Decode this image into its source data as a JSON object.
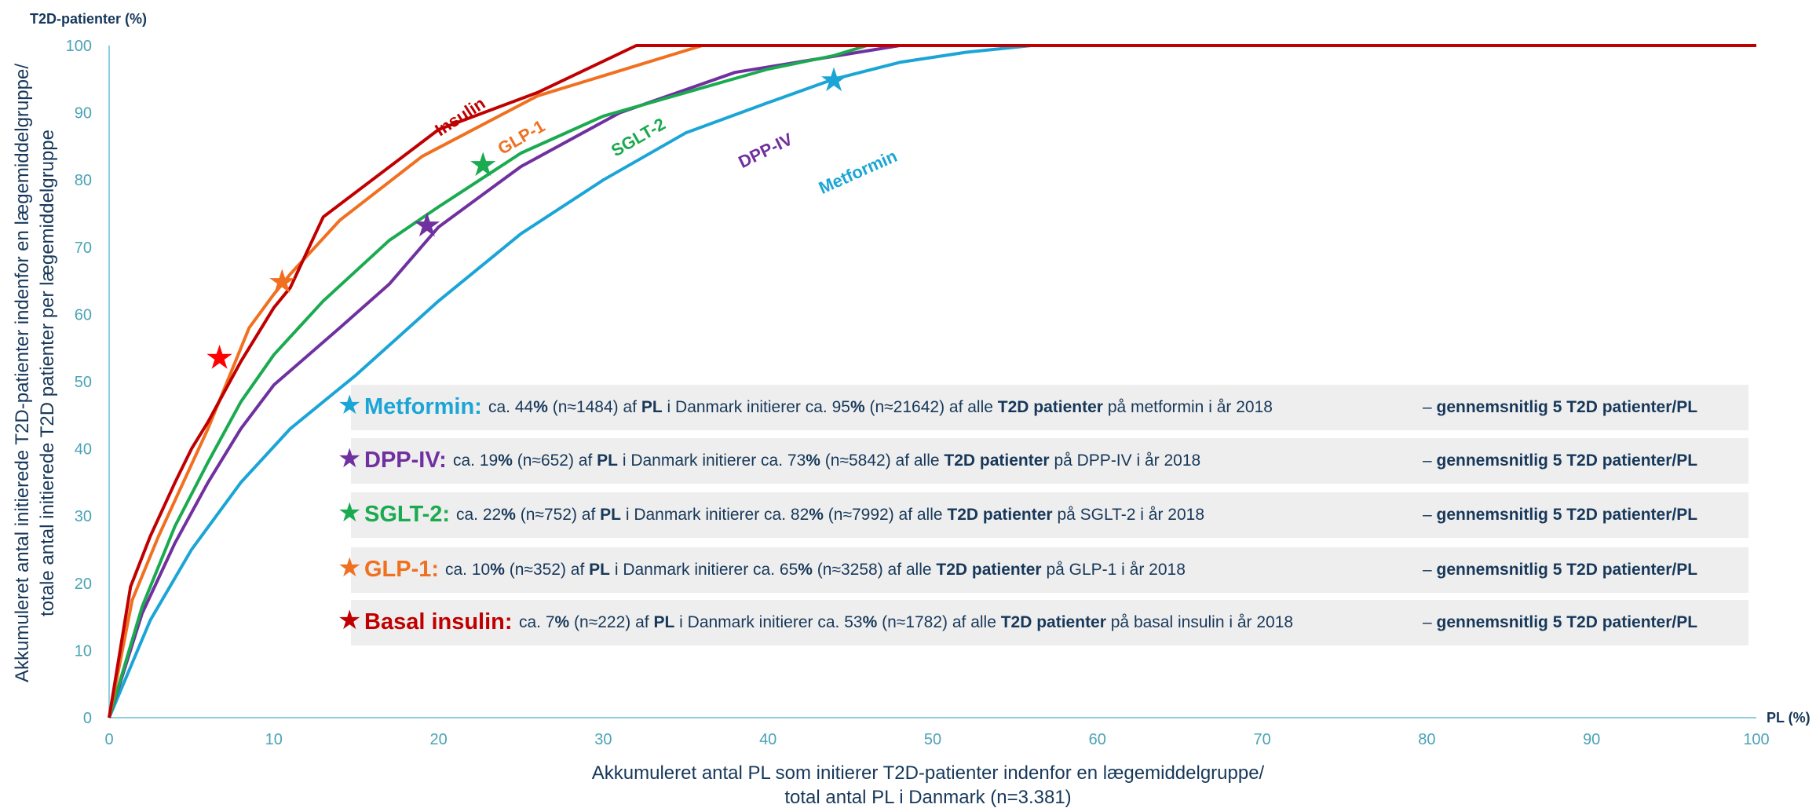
{
  "chart_data": {
    "type": "line",
    "ylabel_top": "T2D-patienter (%)",
    "xlabel_right": "PL (%)",
    "ylabel_line1": "Akkumuleret antal initierede T2D-patienter indenfor en lægemiddelgruppe/",
    "ylabel_line2": "totale antal initierede T2D patienter per lægemiddelgruppe",
    "xlabel_line1": "Akkumuleret antal PL som initierer T2D-patienter indenfor en lægemiddelgruppe/",
    "xlabel_line2": "total antal PL i Danmark (n=3.381)",
    "xlim": [
      0,
      100
    ],
    "ylim": [
      0,
      100
    ],
    "x_ticks": [
      "0",
      "10",
      "20",
      "30",
      "40",
      "50",
      "60",
      "70",
      "80",
      "90",
      "100"
    ],
    "y_ticks": [
      "0",
      "10",
      "20",
      "30",
      "40",
      "50",
      "60",
      "70",
      "80",
      "90",
      "100"
    ],
    "grid": false,
    "series": [
      {
        "name": "Insulin",
        "color": "#c00000",
        "points": [
          [
            0,
            0
          ],
          [
            1.3,
            19.5
          ],
          [
            2.5,
            27
          ],
          [
            4,
            35
          ],
          [
            5,
            40
          ],
          [
            6,
            44
          ],
          [
            8,
            53
          ],
          [
            10,
            61
          ],
          [
            11,
            64
          ],
          [
            13,
            74.5
          ],
          [
            20,
            87.5
          ],
          [
            26,
            93
          ],
          [
            32,
            100
          ],
          [
            100,
            100
          ]
        ]
      },
      {
        "name": "GLP-1",
        "color": "#f07020",
        "points": [
          [
            0,
            0
          ],
          [
            1.4,
            17.5
          ],
          [
            3,
            27
          ],
          [
            4.5,
            35
          ],
          [
            6,
            43
          ],
          [
            7,
            49
          ],
          [
            8.5,
            58
          ],
          [
            10,
            63
          ],
          [
            11,
            66
          ],
          [
            14,
            74
          ],
          [
            19,
            83.5
          ],
          [
            26,
            92.5
          ],
          [
            36,
            100
          ],
          [
            100,
            100
          ]
        ]
      },
      {
        "name": "SGLT-2",
        "color": "#1aaa50",
        "points": [
          [
            0,
            0
          ],
          [
            2,
            16.5
          ],
          [
            4,
            28.5
          ],
          [
            6,
            38
          ],
          [
            8,
            47
          ],
          [
            10,
            54
          ],
          [
            13,
            62
          ],
          [
            17,
            71
          ],
          [
            20,
            76
          ],
          [
            25,
            84
          ],
          [
            30,
            89.5
          ],
          [
            35,
            93
          ],
          [
            40,
            96.5
          ],
          [
            44,
            98.5
          ],
          [
            46,
            100
          ],
          [
            100,
            100
          ]
        ]
      },
      {
        "name": "DPP-IV",
        "color": "#7030a0",
        "points": [
          [
            0,
            0
          ],
          [
            2,
            15.5
          ],
          [
            4,
            26
          ],
          [
            6,
            35
          ],
          [
            8,
            43
          ],
          [
            10,
            49.5
          ],
          [
            14,
            58
          ],
          [
            17,
            64.5
          ],
          [
            20,
            73
          ],
          [
            25,
            82
          ],
          [
            31,
            90
          ],
          [
            38,
            96
          ],
          [
            48,
            100
          ],
          [
            100,
            100
          ]
        ]
      },
      {
        "name": "Metformin",
        "color": "#1ba5d6",
        "points": [
          [
            0,
            0
          ],
          [
            2.5,
            14.5
          ],
          [
            5,
            25
          ],
          [
            8,
            35
          ],
          [
            11,
            43
          ],
          [
            15,
            51
          ],
          [
            20,
            62
          ],
          [
            25,
            72
          ],
          [
            30,
            80
          ],
          [
            35,
            87
          ],
          [
            40,
            91.5
          ],
          [
            44,
            95
          ],
          [
            48,
            97.5
          ],
          [
            52,
            99
          ],
          [
            56,
            100
          ],
          [
            100,
            100
          ]
        ]
      }
    ],
    "stars": [
      {
        "series": "Insulin",
        "color": "#ff0000",
        "x": 6.7,
        "y": 53.5
      },
      {
        "series": "GLP-1",
        "color": "#f07020",
        "x": 10.5,
        "y": 64.8
      },
      {
        "series": "SGLT-2",
        "color": "#1aaa50",
        "x": 22.7,
        "y": 82.2
      },
      {
        "series": "DPP-IV",
        "color": "#7030a0",
        "x": 19.3,
        "y": 73.2
      },
      {
        "series": "Metformin",
        "color": "#1ba5d6",
        "x": 44,
        "y": 94.8
      }
    ]
  },
  "annotations": [
    {
      "name": "Metformin:",
      "color": "#1ba5d6",
      "prefix": "ca. 44",
      "bold1": "%",
      "mid1": " (n≈1484) af ",
      "bold2": "PL",
      "mid2": " i Danmark initierer ca. 95",
      "bold3": "%",
      "mid3": " (n≈21642) af alle ",
      "bold4": "T2D patienter",
      "suffix": " på metformin i år 2018",
      "avg_dash": "– ",
      "avg": "gennemsnitlig  5 T2D patienter/PL"
    },
    {
      "name": "DPP-IV:",
      "color": "#7030a0",
      "prefix": "ca. 19",
      "bold1": "%",
      "mid1": " (n≈652) af ",
      "bold2": "PL",
      "mid2": " i Danmark initierer ca. 73",
      "bold3": "%",
      "mid3": " (n≈5842) af alle ",
      "bold4": "T2D patienter",
      "suffix": " på DPP-IV i år 2018",
      "avg_dash": "– ",
      "avg": "gennemsnitlig  5 T2D patienter/PL"
    },
    {
      "name": "SGLT-2:",
      "color": "#1aaa50",
      "prefix": "ca. 22",
      "bold1": "%",
      "mid1": " (n≈752) af ",
      "bold2": "PL",
      "mid2": " i Danmark  initierer ca. 82",
      "bold3": "%",
      "mid3": " (n≈7992) af alle ",
      "bold4": "T2D patienter",
      "suffix": " på SGLT-2 i år 2018",
      "avg_dash": "– ",
      "avg": "gennemsnitlig  5 T2D patienter/PL"
    },
    {
      "name": "GLP-1:",
      "color": "#f07020",
      "prefix": "ca. 10",
      "bold1": "%",
      "mid1": " (n≈352) af ",
      "bold2": "PL",
      "mid2": " i Danmark initierer ca. 65",
      "bold3": "%",
      "mid3": " (n≈3258) af alle ",
      "bold4": "T2D patienter",
      "suffix": " på GLP-1 i år 2018",
      "avg_dash": "–  ",
      "avg": "gennemsnitlig  5 T2D patienter/PL"
    },
    {
      "name": "Basal insulin:",
      "color": "#c00000",
      "prefix": "ca. 7",
      "bold1": "%",
      "mid1": " (n≈222) af ",
      "bold2": "PL",
      "mid2": " i Danmark initierer ca. 53",
      "bold3": "%",
      "mid3": " (n≈1782) af alle ",
      "bold4": "T2D patienter",
      "suffix": " på basal insulin i år 2018",
      "avg_dash": "– ",
      "avg": "gennemsnitlig  5 T2D patienter/PL"
    }
  ]
}
